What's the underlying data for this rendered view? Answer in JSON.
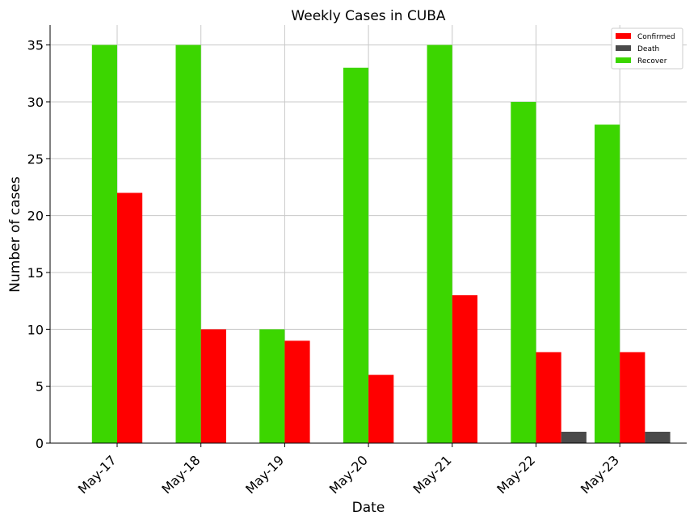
{
  "chart_data": {
    "type": "bar",
    "title": "Weekly Cases in CUBA",
    "xlabel": "Date",
    "ylabel": "Number of cases",
    "categories": [
      "May-17",
      "May-18",
      "May-19",
      "May-20",
      "May-21",
      "May-22",
      "May-23"
    ],
    "series": [
      {
        "name": "Recover",
        "color": "#3cd600",
        "values": [
          35,
          35,
          10,
          33,
          35,
          30,
          28
        ]
      },
      {
        "name": "Confirmed",
        "color": "#ff0000",
        "values": [
          22,
          10,
          9,
          6,
          13,
          8,
          8
        ]
      },
      {
        "name": "Death",
        "color": "#4a4a4a",
        "values": [
          0,
          0,
          0,
          0,
          0,
          1,
          1
        ]
      }
    ],
    "legend_order": [
      "Confirmed",
      "Death",
      "Recover"
    ],
    "ylim": [
      0,
      36.75
    ],
    "yticks": [
      0,
      5,
      10,
      15,
      20,
      25,
      30,
      35
    ],
    "grid": true,
    "legend_position": "top-right"
  }
}
